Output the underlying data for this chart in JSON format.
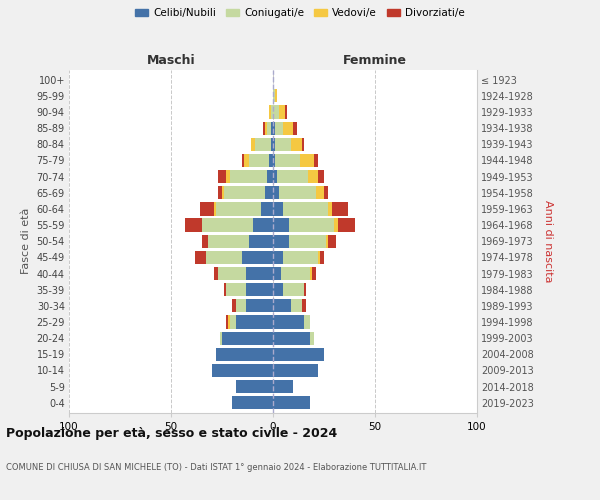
{
  "age_groups": [
    "0-4",
    "5-9",
    "10-14",
    "15-19",
    "20-24",
    "25-29",
    "30-34",
    "35-39",
    "40-44",
    "45-49",
    "50-54",
    "55-59",
    "60-64",
    "65-69",
    "70-74",
    "75-79",
    "80-84",
    "85-89",
    "90-94",
    "95-99",
    "100+"
  ],
  "birth_years": [
    "2019-2023",
    "2014-2018",
    "2009-2013",
    "2004-2008",
    "1999-2003",
    "1994-1998",
    "1989-1993",
    "1984-1988",
    "1979-1983",
    "1974-1978",
    "1969-1973",
    "1964-1968",
    "1959-1963",
    "1954-1958",
    "1949-1953",
    "1944-1948",
    "1939-1943",
    "1934-1938",
    "1929-1933",
    "1924-1928",
    "≤ 1923"
  ],
  "maschi": {
    "celibi": [
      20,
      18,
      30,
      28,
      25,
      18,
      13,
      13,
      13,
      15,
      12,
      10,
      6,
      4,
      3,
      2,
      1,
      1,
      0,
      0,
      0
    ],
    "coniugati": [
      0,
      0,
      0,
      0,
      1,
      3,
      5,
      10,
      14,
      18,
      20,
      25,
      22,
      20,
      18,
      10,
      8,
      2,
      1,
      0,
      0
    ],
    "vedovi": [
      0,
      0,
      0,
      0,
      0,
      1,
      0,
      0,
      0,
      0,
      0,
      0,
      1,
      1,
      2,
      2,
      2,
      1,
      1,
      0,
      0
    ],
    "divorziati": [
      0,
      0,
      0,
      0,
      0,
      1,
      2,
      1,
      2,
      5,
      3,
      8,
      7,
      2,
      4,
      1,
      0,
      1,
      0,
      0,
      0
    ]
  },
  "femmine": {
    "nubili": [
      18,
      10,
      22,
      25,
      18,
      15,
      9,
      5,
      4,
      5,
      8,
      8,
      5,
      3,
      2,
      1,
      1,
      1,
      0,
      0,
      0
    ],
    "coniugate": [
      0,
      0,
      0,
      0,
      2,
      3,
      5,
      10,
      14,
      17,
      18,
      22,
      22,
      18,
      15,
      12,
      8,
      4,
      3,
      1,
      0
    ],
    "vedove": [
      0,
      0,
      0,
      0,
      0,
      0,
      0,
      0,
      1,
      1,
      1,
      2,
      2,
      4,
      5,
      7,
      5,
      5,
      3,
      1,
      0
    ],
    "divorziate": [
      0,
      0,
      0,
      0,
      0,
      0,
      2,
      1,
      2,
      2,
      4,
      8,
      8,
      2,
      3,
      2,
      1,
      2,
      1,
      0,
      0
    ]
  },
  "colors": {
    "celibi": "#4472a8",
    "coniugati": "#c5d9a0",
    "vedovi": "#f5c842",
    "divorziati": "#c0392b"
  },
  "xlim": 100,
  "title": "Popolazione per età, sesso e stato civile - 2024",
  "subtitle": "COMUNE DI CHIUSA DI SAN MICHELE (TO) - Dati ISTAT 1° gennaio 2024 - Elaborazione TUTTITALIA.IT",
  "xlabel_left": "Maschi",
  "xlabel_right": "Femmine",
  "ylabel_left": "Fasce di età",
  "ylabel_right": "Anni di nascita",
  "bg_color": "#f0f0f0",
  "plot_bg": "#ffffff"
}
